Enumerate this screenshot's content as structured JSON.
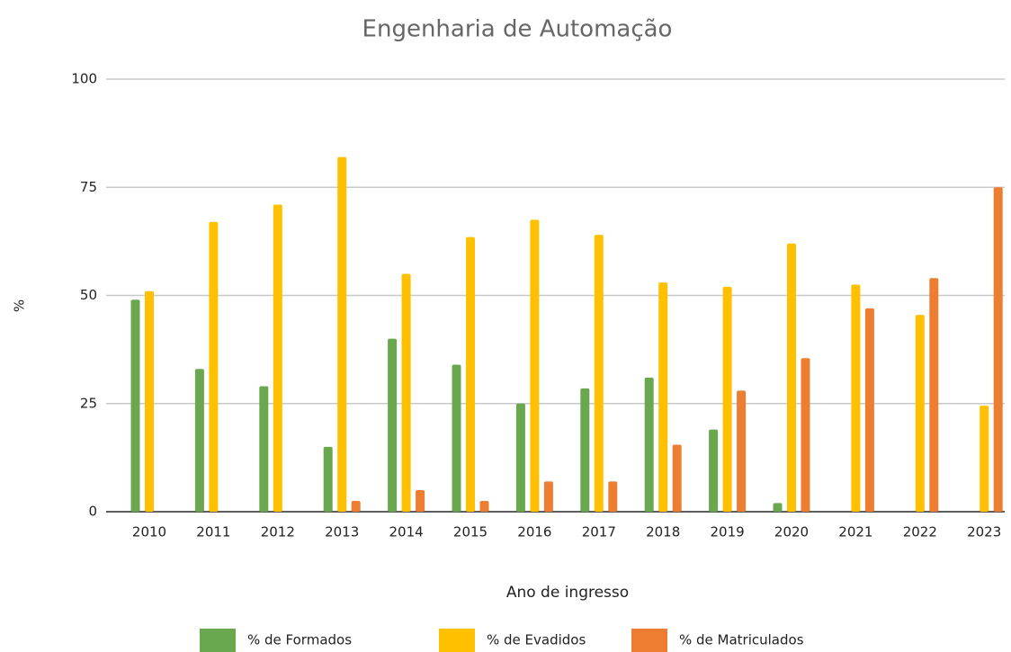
{
  "chart_data": {
    "type": "bar",
    "title": "Engenharia de Automação",
    "x_label": "Ano de ingresso",
    "y_label": "%",
    "categories": [
      "2010",
      "2011",
      "2012",
      "2013",
      "2014",
      "2015",
      "2016",
      "2017",
      "2018",
      "2019",
      "2020",
      "2021",
      "2022",
      "2023"
    ],
    "series": [
      {
        "name": "% de Formados",
        "color": "#6aa84f",
        "values": [
          49,
          33,
          29,
          15,
          40,
          34,
          25,
          28.5,
          31,
          19,
          2,
          0,
          0,
          0
        ]
      },
      {
        "name": "% de Evadidos",
        "color": "#ffc000",
        "values": [
          51,
          67,
          71,
          82,
          55,
          63.5,
          67.5,
          64,
          53,
          52,
          62,
          52.5,
          45.5,
          24.5
        ]
      },
      {
        "name": "% de Matriculados",
        "color": "#ed7d31",
        "values": [
          0,
          0,
          0,
          2.5,
          5,
          2.5,
          7,
          7,
          15.5,
          28,
          35.5,
          47,
          54,
          75
        ]
      }
    ],
    "ylim": [
      0,
      100
    ],
    "yticks": [
      0,
      25,
      50,
      75,
      100
    ],
    "grid": true,
    "legend": "bottom"
  }
}
